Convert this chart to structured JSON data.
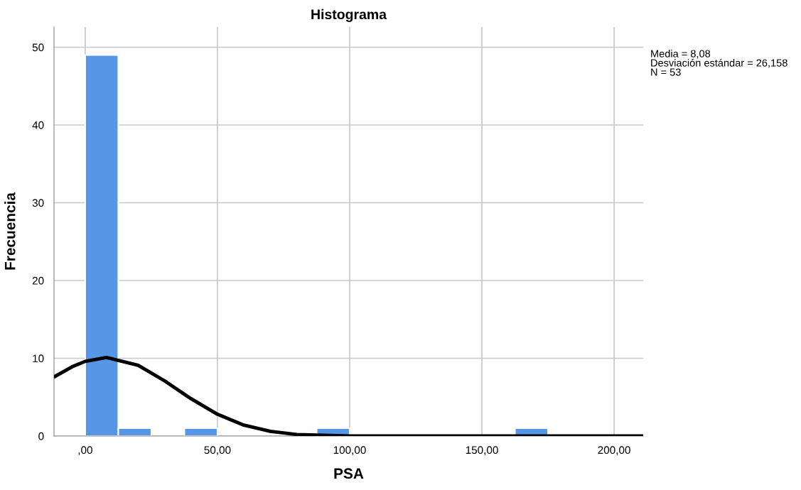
{
  "chart_data": {
    "type": "histogram",
    "title": "Histograma",
    "xlabel": "PSA",
    "ylabel": "Frecuencia",
    "bins": [
      0,
      12.5,
      25,
      37.5,
      50,
      62.5,
      75,
      87.5,
      100,
      112.5,
      125,
      137.5,
      150,
      162.5,
      175
    ],
    "values": [
      49,
      1,
      0,
      1,
      0,
      0,
      0,
      1,
      0,
      0,
      0,
      0,
      0,
      1
    ],
    "color": "#5596e6",
    "series": [
      {
        "type": "line",
        "color": "#000000",
        "x": [
          -11.8,
          -5,
          0,
          8,
          20,
          30,
          40,
          50,
          60,
          70,
          80,
          90,
          100,
          120,
          211
        ],
        "values": [
          7.6,
          8.9,
          9.6,
          10.1,
          9.1,
          7.1,
          4.8,
          2.8,
          1.4,
          0.6,
          0.2,
          0.1,
          0,
          0,
          0
        ]
      }
    ],
    "xlim": [
      -11.8,
      211
    ],
    "ylim": [
      0,
      52.6
    ],
    "xticks": [
      {
        "value": 0,
        "label": ",00"
      },
      {
        "value": 50,
        "label": "50,00"
      },
      {
        "value": 100,
        "label": "100,00"
      },
      {
        "value": 150,
        "label": "150,00"
      },
      {
        "value": 200,
        "label": "200,00"
      }
    ],
    "yticks": [
      0,
      10,
      20,
      30,
      40,
      50
    ],
    "grid": true,
    "legend": false,
    "annotations": [
      "Media = 8,08",
      "Desviación estándar = 26,158",
      "N = 53"
    ]
  }
}
